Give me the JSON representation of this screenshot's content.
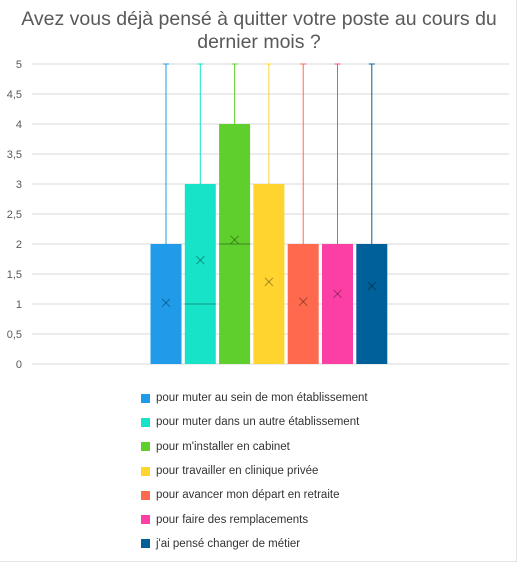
{
  "title_lines": [
    "Avez vous déjà pensé à quitter votre poste au cours du",
    "dernier mois ?"
  ],
  "chart_data": {
    "type": "box",
    "title": "Avez vous déjà pensé à quitter votre poste au cours du dernier mois ?",
    "y_ticks": [
      "0",
      "0,5",
      "1",
      "1,5",
      "2",
      "2,5",
      "3",
      "3,5",
      "4",
      "4,5",
      "5"
    ],
    "ylim": [
      0,
      5
    ],
    "grid": true,
    "legend_position": "bottom",
    "series": [
      {
        "name": "pour muter au sein de mon établissement",
        "color": "#1f9bea",
        "q1": 0,
        "median": 0,
        "q3": 2,
        "max": 5,
        "mean": 1.02
      },
      {
        "name": "pour muter dans un autre établissement",
        "color": "#17e3c8",
        "q1": 0,
        "median": 1,
        "q3": 3,
        "max": 5,
        "mean": 1.73
      },
      {
        "name": "pour m'installer en cabinet",
        "color": "#5fcf2d",
        "q1": 0,
        "median": 2,
        "q3": 4,
        "max": 5,
        "mean": 2.07
      },
      {
        "name": "pour travailler en clinique privée",
        "color": "#ffd42e",
        "q1": 0,
        "median": 0,
        "q3": 3,
        "max": 5,
        "mean": 1.37
      },
      {
        "name": "pour avancer mon départ en retraite",
        "color": "#ff6a4f",
        "q1": 0,
        "median": 0,
        "q3": 2,
        "max": 5,
        "mean": 1.04
      },
      {
        "name": "pour faire des remplacements",
        "color": "#fb3fa4",
        "q1": 0,
        "median": 0,
        "q3": 2,
        "max": 5,
        "mean": 1.17
      },
      {
        "name": "j'ai pensé changer de métier",
        "color": "#00609a",
        "q1": 0,
        "median": 0,
        "q3": 2,
        "max": 5,
        "mean": 1.3
      }
    ]
  }
}
